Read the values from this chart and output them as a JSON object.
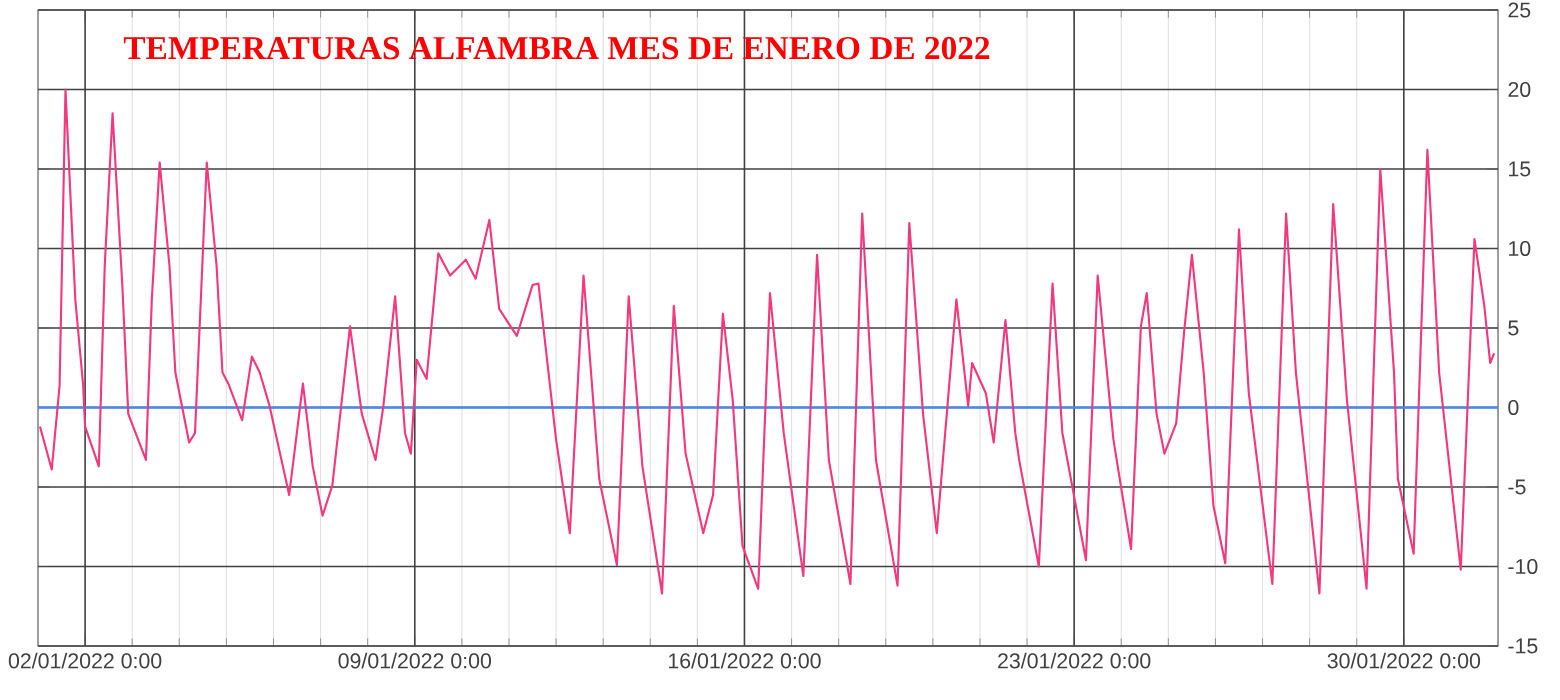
{
  "chart_data": {
    "type": "line",
    "title": "TEMPERATURAS ALFAMBRA MES DE ENERO DE 2022",
    "x": [
      "2022-01-01T01:00",
      "2022-01-01T07:00",
      "2022-01-01T11:00",
      "2022-01-01T14:00",
      "2022-01-01T19:00",
      "2022-01-01T23:00",
      "2022-01-02T00:00",
      "2022-01-02T07:00",
      "2022-01-02T10:00",
      "2022-01-02T14:00",
      "2022-01-02T19:00",
      "2022-01-02T22:00",
      "2022-01-03T07:00",
      "2022-01-03T10:00",
      "2022-01-03T14:00",
      "2022-01-03T19:00",
      "2022-01-03T22:00",
      "2022-01-04T05:00",
      "2022-01-04T08:00",
      "2022-01-04T14:00",
      "2022-01-04T19:00",
      "2022-01-04T22:00",
      "2022-01-05T01:00",
      "2022-01-05T08:00",
      "2022-01-05T13:00",
      "2022-01-05T17:00",
      "2022-01-05T22:00",
      "2022-01-06T08:00",
      "2022-01-06T15:00",
      "2022-01-06T20:00",
      "2022-01-07T01:00",
      "2022-01-07T06:00",
      "2022-01-07T15:00",
      "2022-01-07T21:00",
      "2022-01-08T04:00",
      "2022-01-08T08:00",
      "2022-01-08T14:00",
      "2022-01-08T19:00",
      "2022-01-08T22:00",
      "2022-01-09T01:00",
      "2022-01-09T06:00",
      "2022-01-09T12:00",
      "2022-01-09T18:00",
      "2022-01-10T02:00",
      "2022-01-10T07:00",
      "2022-01-10T14:00",
      "2022-01-10T19:00",
      "2022-01-11T04:00",
      "2022-01-11T12:00",
      "2022-01-11T15:00",
      "2022-01-12T00:00",
      "2022-01-12T07:00",
      "2022-01-12T14:00",
      "2022-01-12T22:00",
      "2022-01-13T07:00",
      "2022-01-13T13:00",
      "2022-01-13T20:00",
      "2022-01-14T06:00",
      "2022-01-14T12:00",
      "2022-01-14T18:00",
      "2022-01-15T03:00",
      "2022-01-15T08:00",
      "2022-01-15T13:00",
      "2022-01-15T18:00",
      "2022-01-15T23:00",
      "2022-01-16T07:00",
      "2022-01-16T13:00",
      "2022-01-16T20:00",
      "2022-01-17T06:00",
      "2022-01-17T13:00",
      "2022-01-17T19:00",
      "2022-01-18T06:00",
      "2022-01-18T12:00",
      "2022-01-18T19:00",
      "2022-01-19T06:00",
      "2022-01-19T12:00",
      "2022-01-19T19:00",
      "2022-01-20T02:00",
      "2022-01-20T12:00",
      "2022-01-20T18:00",
      "2022-01-20T20:00",
      "2022-01-21T03:00",
      "2022-01-21T07:00",
      "2022-01-21T13:00",
      "2022-01-21T18:00",
      "2022-01-21T20:00",
      "2022-01-22T06:00",
      "2022-01-22T13:00",
      "2022-01-22T18:00",
      "2022-01-23T06:00",
      "2022-01-23T12:00",
      "2022-01-23T20:00",
      "2022-01-24T05:00",
      "2022-01-24T10:00",
      "2022-01-24T13:00",
      "2022-01-24T18:00",
      "2022-01-24T22:00",
      "2022-01-25T04:00",
      "2022-01-25T08:00",
      "2022-01-25T12:00",
      "2022-01-25T18:00",
      "2022-01-25T23:00",
      "2022-01-26T05:00",
      "2022-01-26T12:00",
      "2022-01-26T17:00",
      "2022-01-27T05:00",
      "2022-01-27T12:00",
      "2022-01-27T17:00",
      "2022-01-28T05:00",
      "2022-01-28T12:00",
      "2022-01-28T19:00",
      "2022-01-29T05:00",
      "2022-01-29T12:00",
      "2022-01-29T19:00",
      "2022-01-29T21:00",
      "2022-01-30T05:00",
      "2022-01-30T12:00",
      "2022-01-30T18:00",
      "2022-01-31T05:00",
      "2022-01-31T12:00",
      "2022-01-31T17:00",
      "2022-01-31T20:00",
      "2022-01-31T22:00"
    ],
    "series": [
      {
        "color": "#f2387e",
        "values": [
          -1.2,
          -3.9,
          1.4,
          20.0,
          6.8,
          1.4,
          -1.2,
          -3.7,
          8.9,
          18.5,
          7.6,
          -0.4,
          -3.3,
          6.8,
          15.4,
          8.9,
          2.2,
          -2.2,
          -1.6,
          15.4,
          8.9,
          2.2,
          1.5,
          -0.8,
          3.2,
          2.2,
          0.1,
          -5.5,
          1.5,
          -3.7,
          -6.8,
          -4.9,
          5.1,
          -0.4,
          -3.3,
          0.1,
          7.0,
          -1.6,
          -2.9,
          3.0,
          1.8,
          9.7,
          8.3,
          9.3,
          8.1,
          11.8,
          6.2,
          4.5,
          7.7,
          7.8,
          -2.0,
          -7.9,
          8.3,
          -4.5,
          -9.9,
          7.0,
          -3.7,
          -11.7,
          6.4,
          -2.9,
          -7.9,
          -5.5,
          5.9,
          0.5,
          -8.7,
          -11.4,
          7.2,
          -1.6,
          -10.6,
          9.6,
          -3.3,
          -11.1,
          12.2,
          -3.3,
          -11.2,
          11.6,
          -0.4,
          -7.9,
          6.8,
          0.1,
          2.8,
          0.9,
          -2.2,
          5.5,
          -1.6,
          -3.3,
          -10.0,
          7.8,
          -1.6,
          -9.6,
          8.3,
          -2.0,
          -8.9,
          5.1,
          7.2,
          -0.4,
          -2.9,
          -1.0,
          4.7,
          9.6,
          2.2,
          -6.2,
          -9.8,
          11.2,
          0.9,
          -11.1,
          12.2,
          2.2,
          -11.7,
          12.8,
          0.5,
          -11.4,
          15.0,
          2.2,
          -4.5,
          -9.2,
          16.2,
          2.2,
          -10.2,
          10.6,
          6.4,
          2.8,
          3.4
        ]
      }
    ],
    "xlim": [
      "2022-01-01T00:00",
      "2022-02-01T00:00"
    ],
    "xticks": [
      {
        "value": "2022-01-02T00:00",
        "label": "02/01/2022 0:00"
      },
      {
        "value": "2022-01-09T00:00",
        "label": "09/01/2022 0:00"
      },
      {
        "value": "2022-01-16T00:00",
        "label": "16/01/2022 0:00"
      },
      {
        "value": "2022-01-23T00:00",
        "label": "23/01/2022 0:00"
      },
      {
        "value": "2022-01-30T00:00",
        "label": "30/01/2022 0:00"
      }
    ],
    "ylim": [
      -15,
      25
    ],
    "yticks": [
      -15,
      -10,
      -5,
      0,
      5,
      10,
      15,
      20,
      25
    ],
    "grid": true,
    "ref_lines": [
      {
        "axis": "y",
        "value": 0,
        "color": "#4a8ae8"
      }
    ]
  }
}
